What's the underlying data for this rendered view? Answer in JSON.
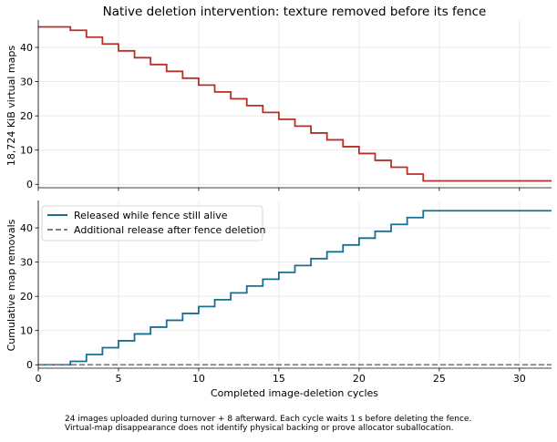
{
  "chart_data": [
    {
      "type": "line",
      "step": "post",
      "title": "Native deletion intervention: texture removed before its fence",
      "xlabel": "",
      "ylabel": "18,724 KiB virtual maps",
      "xlim": [
        0,
        32
      ],
      "ylim": [
        -1,
        48
      ],
      "xticks": [
        0,
        5,
        10,
        15,
        20,
        25,
        30
      ],
      "yticks": [
        0,
        10,
        20,
        30,
        40
      ],
      "grid": true,
      "series": [
        {
          "color": "#b5302a",
          "x": [
            0,
            2,
            3,
            4,
            5,
            6,
            7,
            8,
            9,
            10,
            11,
            12,
            13,
            14,
            15,
            16,
            17,
            18,
            19,
            20,
            21,
            22,
            23,
            24,
            32
          ],
          "y": [
            46,
            45,
            43,
            41,
            39,
            37,
            35,
            33,
            31,
            29,
            27,
            25,
            23,
            21,
            19,
            17,
            15,
            13,
            11,
            9,
            7,
            5,
            3,
            1,
            1
          ]
        }
      ]
    },
    {
      "type": "line",
      "step": "post",
      "xlabel": "Completed image-deletion cycles",
      "ylabel": "Cumulative map removals",
      "xlim": [
        0,
        32
      ],
      "ylim": [
        -1,
        48
      ],
      "xticks": [
        0,
        5,
        10,
        15,
        20,
        25,
        30
      ],
      "yticks": [
        0,
        10,
        20,
        30,
        40
      ],
      "grid": true,
      "legend": "top-left",
      "series": [
        {
          "name": "Released while fence still alive",
          "color": "#17708f",
          "style": "solid",
          "x": [
            0,
            2,
            3,
            4,
            5,
            6,
            7,
            8,
            9,
            10,
            11,
            12,
            13,
            14,
            15,
            16,
            17,
            18,
            19,
            20,
            21,
            22,
            23,
            24,
            32
          ],
          "y": [
            0,
            1,
            3,
            5,
            7,
            9,
            11,
            13,
            15,
            17,
            19,
            21,
            23,
            25,
            27,
            29,
            31,
            33,
            35,
            37,
            39,
            41,
            43,
            45,
            45
          ]
        },
        {
          "name": "Additional release after fence deletion",
          "color": "#808080",
          "style": "dashed",
          "x": [
            0,
            32
          ],
          "y": [
            0,
            0
          ]
        }
      ]
    }
  ],
  "notes": [
    "24 images uploaded during turnover + 8 afterward. Each cycle waits 1 s before deleting the fence.",
    "Virtual-map disappearance does not identify physical backing or prove allocator suballocation."
  ]
}
